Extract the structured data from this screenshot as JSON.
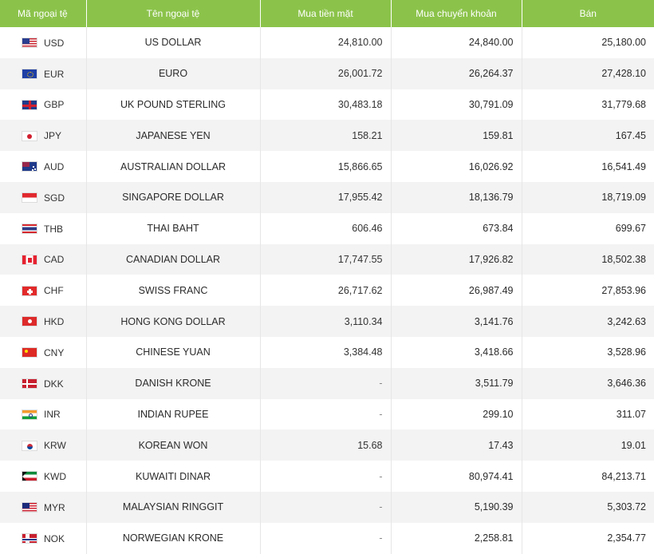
{
  "header": {
    "code": "Mã ngoại tệ",
    "name": "Tên ngoại tệ",
    "cash_buy": "Mua tiền mặt",
    "transfer_buy": "Mua chuyển khoản",
    "sell": "Bán"
  },
  "rows": [
    {
      "flag": "us-flag-icon",
      "code": "USD",
      "name": "US DOLLAR",
      "cash": "24,810.00",
      "transfer": "24,840.00",
      "sell": "25,180.00"
    },
    {
      "flag": "eu-flag-icon",
      "code": "EUR",
      "name": "EURO",
      "cash": "26,001.72",
      "transfer": "26,264.37",
      "sell": "27,428.10"
    },
    {
      "flag": "uk-flag-icon",
      "code": "GBP",
      "name": "UK POUND STERLING",
      "cash": "30,483.18",
      "transfer": "30,791.09",
      "sell": "31,779.68"
    },
    {
      "flag": "jp-flag-icon",
      "code": "JPY",
      "name": "JAPANESE YEN",
      "cash": "158.21",
      "transfer": "159.81",
      "sell": "167.45"
    },
    {
      "flag": "au-flag-icon",
      "code": "AUD",
      "name": "AUSTRALIAN DOLLAR",
      "cash": "15,866.65",
      "transfer": "16,026.92",
      "sell": "16,541.49"
    },
    {
      "flag": "sg-flag-icon",
      "code": "SGD",
      "name": "SINGAPORE DOLLAR",
      "cash": "17,955.42",
      "transfer": "18,136.79",
      "sell": "18,719.09"
    },
    {
      "flag": "th-flag-icon",
      "code": "THB",
      "name": "THAI BAHT",
      "cash": "606.46",
      "transfer": "673.84",
      "sell": "699.67"
    },
    {
      "flag": "ca-flag-icon",
      "code": "CAD",
      "name": "CANADIAN DOLLAR",
      "cash": "17,747.55",
      "transfer": "17,926.82",
      "sell": "18,502.38"
    },
    {
      "flag": "ch-flag-icon",
      "code": "CHF",
      "name": "SWISS FRANC",
      "cash": "26,717.62",
      "transfer": "26,987.49",
      "sell": "27,853.96"
    },
    {
      "flag": "hk-flag-icon",
      "code": "HKD",
      "name": "HONG KONG DOLLAR",
      "cash": "3,110.34",
      "transfer": "3,141.76",
      "sell": "3,242.63"
    },
    {
      "flag": "cn-flag-icon",
      "code": "CNY",
      "name": "CHINESE YUAN",
      "cash": "3,384.48",
      "transfer": "3,418.66",
      "sell": "3,528.96"
    },
    {
      "flag": "dk-flag-icon",
      "code": "DKK",
      "name": "DANISH KRONE",
      "cash": "-",
      "transfer": "3,511.79",
      "sell": "3,646.36"
    },
    {
      "flag": "in-flag-icon",
      "code": "INR",
      "name": "INDIAN RUPEE",
      "cash": "-",
      "transfer": "299.10",
      "sell": "311.07"
    },
    {
      "flag": "kr-flag-icon",
      "code": "KRW",
      "name": "KOREAN WON",
      "cash": "15.68",
      "transfer": "17.43",
      "sell": "19.01"
    },
    {
      "flag": "kw-flag-icon",
      "code": "KWD",
      "name": "KUWAITI DINAR",
      "cash": "-",
      "transfer": "80,974.41",
      "sell": "84,213.71"
    },
    {
      "flag": "my-flag-icon",
      "code": "MYR",
      "name": "MALAYSIAN RINGGIT",
      "cash": "-",
      "transfer": "5,190.39",
      "sell": "5,303.72"
    },
    {
      "flag": "no-flag-icon",
      "code": "NOK",
      "name": "NORWEGIAN KRONE",
      "cash": "-",
      "transfer": "2,258.81",
      "sell": "2,354.77"
    }
  ],
  "colors": {
    "header_bg": "#8bc34a",
    "row_alt_bg": "#f3f3f3"
  }
}
